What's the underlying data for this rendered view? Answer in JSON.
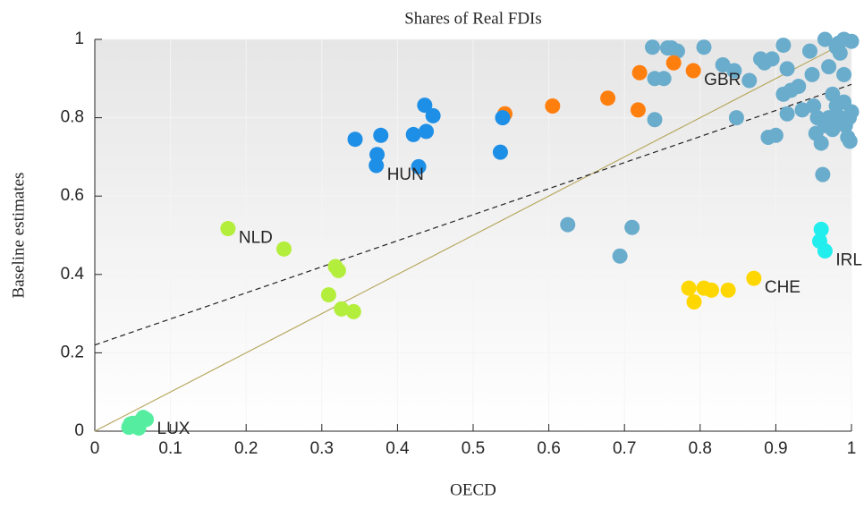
{
  "chart_data": {
    "type": "scatter",
    "title": "Shares of Real FDIs",
    "xlabel": "OECD",
    "ylabel": "Baseline estimates",
    "xlim": [
      0,
      1
    ],
    "ylim": [
      0,
      1
    ],
    "xticks": [
      0,
      0.1,
      0.2,
      0.3,
      0.4,
      0.5,
      0.6,
      0.7,
      0.8,
      0.9,
      1
    ],
    "yticks": [
      0,
      0.2,
      0.4,
      0.6,
      0.8,
      1
    ],
    "grid": true,
    "reference_lines": [
      {
        "color": "#b8a860",
        "dashed": false,
        "x": [
          0,
          1
        ],
        "y": [
          0,
          1
        ]
      },
      {
        "color": "#222222",
        "dashed": true,
        "x": [
          0,
          1
        ],
        "y": [
          0.22,
          0.885
        ]
      }
    ],
    "series": [
      {
        "color": "#6aaccc",
        "x": [
          0.625,
          0.694,
          0.71,
          0.74,
          0.737,
          0.74,
          0.752,
          0.757,
          0.77,
          0.762,
          0.805,
          0.83,
          0.848,
          0.845,
          0.865,
          0.88,
          0.885,
          0.895,
          0.89,
          0.9,
          0.91,
          0.915,
          0.91,
          0.92,
          0.915,
          0.93,
          0.935,
          0.945,
          0.948,
          0.95,
          0.955,
          0.953,
          0.96,
          0.962,
          0.965,
          0.97,
          0.975,
          0.975,
          0.98,
          0.983,
          0.985,
          0.99,
          0.99,
          0.99,
          0.992,
          0.995,
          0.998,
          1.0,
          0.997,
          0.98,
          0.985,
          0.97,
          1.0,
          0.965
        ],
        "values": [
          0.527,
          0.447,
          0.52,
          0.795,
          0.98,
          0.9,
          0.9,
          0.978,
          0.97,
          0.978,
          0.98,
          0.935,
          0.8,
          0.92,
          0.895,
          0.95,
          0.94,
          0.95,
          0.75,
          0.755,
          0.985,
          0.925,
          0.86,
          0.87,
          0.81,
          0.88,
          0.82,
          0.97,
          0.91,
          0.83,
          0.8,
          0.76,
          0.735,
          0.655,
          1.0,
          0.8,
          0.77,
          0.86,
          0.98,
          0.99,
          0.965,
          1.0,
          0.91,
          0.84,
          0.78,
          0.75,
          0.74,
          0.995,
          0.8,
          0.83,
          0.8,
          0.93,
          0.815,
          0.78
        ]
      },
      {
        "name": "GBR",
        "color": "#ff7f0e",
        "x": [
          0.791,
          0.542,
          0.605,
          0.678,
          0.718,
          0.72,
          0.765
        ],
        "values": [
          0.92,
          0.81,
          0.83,
          0.85,
          0.82,
          0.915,
          0.94
        ]
      },
      {
        "name": "HUN",
        "color": "#1e8fe6",
        "x": [
          0.372,
          0.344,
          0.378,
          0.373,
          0.421,
          0.436,
          0.438,
          0.447,
          0.428,
          0.536,
          0.539
        ],
        "values": [
          0.678,
          0.745,
          0.755,
          0.706,
          0.757,
          0.832,
          0.765,
          0.805,
          0.675,
          0.712,
          0.8
        ]
      },
      {
        "name": "NLD",
        "color": "#b4ee3c",
        "x": [
          0.176,
          0.25,
          0.318,
          0.322,
          0.309,
          0.326,
          0.342
        ],
        "values": [
          0.517,
          0.465,
          0.42,
          0.41,
          0.348,
          0.312,
          0.305
        ]
      },
      {
        "name": "CHE",
        "color": "#ffd700",
        "x": [
          0.871,
          0.785,
          0.792,
          0.805,
          0.815,
          0.837
        ],
        "values": [
          0.39,
          0.365,
          0.33,
          0.365,
          0.36,
          0.36
        ]
      },
      {
        "name": "IRL",
        "color": "#22eeee",
        "x": [
          0.965,
          0.96,
          0.958
        ],
        "values": [
          0.46,
          0.515,
          0.485
        ]
      },
      {
        "name": "LUX",
        "color": "#55eea0",
        "x": [
          0.068,
          0.045,
          0.05,
          0.055,
          0.06,
          0.047,
          0.058,
          0.064
        ],
        "values": [
          0.03,
          0.01,
          0.02,
          0.012,
          0.025,
          0.018,
          0.008,
          0.035
        ]
      }
    ]
  }
}
